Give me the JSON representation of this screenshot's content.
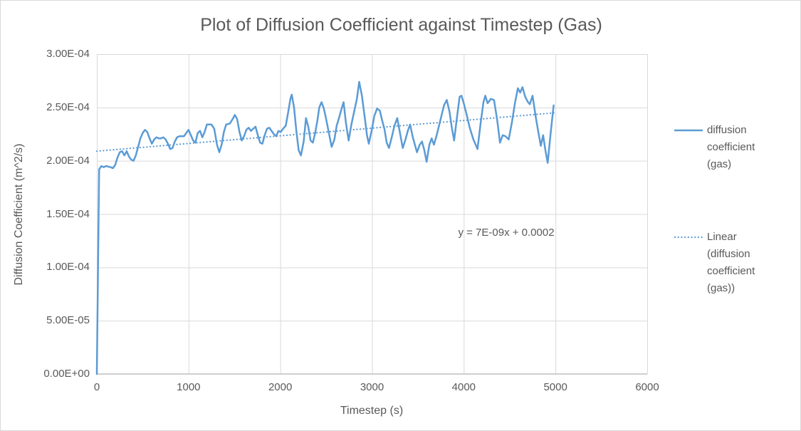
{
  "chart_data": {
    "type": "line",
    "title": "Plot of Diffusion Coefficient against Timestep (Gas)",
    "xlabel": "Timestep (s)",
    "ylabel": "Diffusion Coefficient (m^2/s)",
    "xlim": [
      0,
      6000
    ],
    "ylim": [
      0,
      0.0003
    ],
    "grid": true,
    "legend_position": "right",
    "x_ticks": [
      {
        "label": "0",
        "value": 0
      },
      {
        "label": "1000",
        "value": 1000
      },
      {
        "label": "2000",
        "value": 2000
      },
      {
        "label": "3000",
        "value": 3000
      },
      {
        "label": "4000",
        "value": 4000
      },
      {
        "label": "5000",
        "value": 5000
      },
      {
        "label": "6000",
        "value": 6000
      }
    ],
    "y_ticks": [
      {
        "label": "0.00E+00",
        "value": 0
      },
      {
        "label": "5.00E-05",
        "value": 5e-05
      },
      {
        "label": "1.00E-04",
        "value": 0.0001
      },
      {
        "label": "1.50E-04",
        "value": 0.00015
      },
      {
        "label": "2.00E-04",
        "value": 0.0002
      },
      {
        "label": "2.50E-04",
        "value": 0.00025
      },
      {
        "label": "3.00E-04",
        "value": 0.0003
      }
    ],
    "annotation": {
      "text": "y = 7E-09x + 0.0002"
    },
    "series": [
      {
        "name": "diffusion coefficient (gas)",
        "style": "solid",
        "color": "#5B9BD5",
        "points": [
          [
            0,
            0
          ],
          [
            25,
            0.000192
          ],
          [
            50,
            0.000195
          ],
          [
            75,
            0.000194
          ],
          [
            100,
            0.000195
          ],
          [
            150,
            0.000194
          ],
          [
            175,
            0.000193
          ],
          [
            200,
            0.000196
          ],
          [
            225,
            0.000203
          ],
          [
            250,
            0.000208
          ],
          [
            275,
            0.000209
          ],
          [
            300,
            0.000205
          ],
          [
            325,
            0.000209
          ],
          [
            350,
            0.000204
          ],
          [
            375,
            0.000201
          ],
          [
            400,
            0.0002
          ],
          [
            425,
            0.000205
          ],
          [
            450,
            0.000213
          ],
          [
            475,
            0.000221
          ],
          [
            500,
            0.000226
          ],
          [
            525,
            0.000229
          ],
          [
            550,
            0.000227
          ],
          [
            575,
            0.000221
          ],
          [
            600,
            0.000216
          ],
          [
            625,
            0.00022
          ],
          [
            650,
            0.000222
          ],
          [
            675,
            0.000221
          ],
          [
            700,
            0.000221
          ],
          [
            725,
            0.000222
          ],
          [
            750,
            0.00022
          ],
          [
            775,
            0.000216
          ],
          [
            800,
            0.000211
          ],
          [
            825,
            0.000212
          ],
          [
            850,
            0.000218
          ],
          [
            875,
            0.000222
          ],
          [
            900,
            0.000223
          ],
          [
            950,
            0.000223
          ],
          [
            1000,
            0.000229
          ],
          [
            1050,
            0.000219
          ],
          [
            1075,
            0.000217
          ],
          [
            1100,
            0.000226
          ],
          [
            1125,
            0.000228
          ],
          [
            1150,
            0.000222
          ],
          [
            1175,
            0.000227
          ],
          [
            1200,
            0.000234
          ],
          [
            1250,
            0.000234
          ],
          [
            1280,
            0.00023
          ],
          [
            1310,
            0.000215
          ],
          [
            1335,
            0.000208
          ],
          [
            1360,
            0.000215
          ],
          [
            1385,
            0.000227
          ],
          [
            1410,
            0.000234
          ],
          [
            1450,
            0.000235
          ],
          [
            1480,
            0.000239
          ],
          [
            1505,
            0.000243
          ],
          [
            1530,
            0.000239
          ],
          [
            1555,
            0.000227
          ],
          [
            1580,
            0.000219
          ],
          [
            1605,
            0.000223
          ],
          [
            1630,
            0.000229
          ],
          [
            1655,
            0.000231
          ],
          [
            1680,
            0.000228
          ],
          [
            1705,
            0.00023
          ],
          [
            1730,
            0.000232
          ],
          [
            1755,
            0.000224
          ],
          [
            1780,
            0.000217
          ],
          [
            1805,
            0.000216
          ],
          [
            1830,
            0.000224
          ],
          [
            1855,
            0.00023
          ],
          [
            1880,
            0.000231
          ],
          [
            1905,
            0.000228
          ],
          [
            1930,
            0.000225
          ],
          [
            1955,
            0.000223
          ],
          [
            1980,
            0.000228
          ],
          [
            2005,
            0.000227
          ],
          [
            2030,
            0.00023
          ],
          [
            2060,
            0.000233
          ],
          [
            2085,
            0.000245
          ],
          [
            2110,
            0.000258
          ],
          [
            2125,
            0.000262
          ],
          [
            2150,
            0.00025
          ],
          [
            2175,
            0.000228
          ],
          [
            2200,
            0.00021
          ],
          [
            2225,
            0.000205
          ],
          [
            2255,
            0.000218
          ],
          [
            2280,
            0.00024
          ],
          [
            2305,
            0.000232
          ],
          [
            2330,
            0.000219
          ],
          [
            2355,
            0.000217
          ],
          [
            2380,
            0.000226
          ],
          [
            2405,
            0.000238
          ],
          [
            2425,
            0.00025
          ],
          [
            2450,
            0.000255
          ],
          [
            2475,
            0.000249
          ],
          [
            2500,
            0.000239
          ],
          [
            2530,
            0.000226
          ],
          [
            2560,
            0.000213
          ],
          [
            2590,
            0.00022
          ],
          [
            2615,
            0.000233
          ],
          [
            2640,
            0.00024
          ],
          [
            2665,
            0.000248
          ],
          [
            2690,
            0.000255
          ],
          [
            2715,
            0.000236
          ],
          [
            2745,
            0.000219
          ],
          [
            2775,
            0.000234
          ],
          [
            2805,
            0.000246
          ],
          [
            2835,
            0.000258
          ],
          [
            2860,
            0.000274
          ],
          [
            2890,
            0.000261
          ],
          [
            2920,
            0.000241
          ],
          [
            2945,
            0.000224
          ],
          [
            2965,
            0.000216
          ],
          [
            3000,
            0.00023
          ],
          [
            3025,
            0.000242
          ],
          [
            3055,
            0.000249
          ],
          [
            3085,
            0.000247
          ],
          [
            3110,
            0.000238
          ],
          [
            3135,
            0.00023
          ],
          [
            3160,
            0.000217
          ],
          [
            3185,
            0.000212
          ],
          [
            3215,
            0.000222
          ],
          [
            3245,
            0.000233
          ],
          [
            3275,
            0.00024
          ],
          [
            3305,
            0.000226
          ],
          [
            3335,
            0.000212
          ],
          [
            3365,
            0.00022
          ],
          [
            3390,
            0.000228
          ],
          [
            3415,
            0.000234
          ],
          [
            3445,
            0.000222
          ],
          [
            3490,
            0.000208
          ],
          [
            3520,
            0.000215
          ],
          [
            3545,
            0.000218
          ],
          [
            3570,
            0.00021
          ],
          [
            3595,
            0.000199
          ],
          [
            3625,
            0.000215
          ],
          [
            3650,
            0.000221
          ],
          [
            3675,
            0.000215
          ],
          [
            3705,
            0.000224
          ],
          [
            3745,
            0.000238
          ],
          [
            3785,
            0.000252
          ],
          [
            3815,
            0.000257
          ],
          [
            3845,
            0.000246
          ],
          [
            3870,
            0.000231
          ],
          [
            3895,
            0.000219
          ],
          [
            3925,
            0.00024
          ],
          [
            3955,
            0.00026
          ],
          [
            3975,
            0.000261
          ],
          [
            4000,
            0.000254
          ],
          [
            4035,
            0.000242
          ],
          [
            4065,
            0.000231
          ],
          [
            4105,
            0.00022
          ],
          [
            4150,
            0.000211
          ],
          [
            4185,
            0.000236
          ],
          [
            4215,
            0.000255
          ],
          [
            4235,
            0.000261
          ],
          [
            4260,
            0.000254
          ],
          [
            4295,
            0.000258
          ],
          [
            4330,
            0.000257
          ],
          [
            4365,
            0.000238
          ],
          [
            4395,
            0.000217
          ],
          [
            4425,
            0.000224
          ],
          [
            4455,
            0.000223
          ],
          [
            4490,
            0.00022
          ],
          [
            4525,
            0.000236
          ],
          [
            4560,
            0.000255
          ],
          [
            4590,
            0.000268
          ],
          [
            4615,
            0.000264
          ],
          [
            4640,
            0.000269
          ],
          [
            4670,
            0.00026
          ],
          [
            4700,
            0.000255
          ],
          [
            4720,
            0.000253
          ],
          [
            4750,
            0.000261
          ],
          [
            4785,
            0.000241
          ],
          [
            4815,
            0.000226
          ],
          [
            4840,
            0.000214
          ],
          [
            4865,
            0.000224
          ],
          [
            4890,
            0.00021
          ],
          [
            4915,
            0.000198
          ],
          [
            4950,
            0.000228
          ],
          [
            4980,
            0.000252
          ]
        ]
      },
      {
        "name": "Linear (diffusion coefficient (gas))",
        "style": "dotted",
        "color": "#5B9BD5",
        "equation": "y = 7E-09x + 0.0002",
        "points": [
          [
            0,
            0.000209
          ],
          [
            5000,
            0.000245
          ]
        ]
      }
    ]
  },
  "colors": {
    "series": "#5B9BD5",
    "trendline": "#5B9BD5",
    "gridline": "#D9D9D9",
    "axis_line": "#BFBFBF",
    "text": "#595959",
    "frame_border": "#D9D9D9",
    "background": "#FFFFFF"
  }
}
